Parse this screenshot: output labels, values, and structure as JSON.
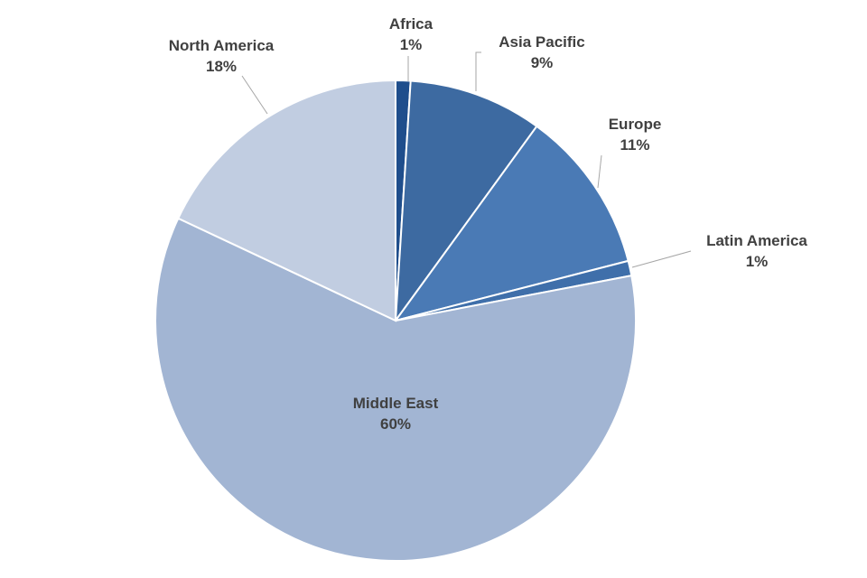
{
  "chart_data": {
    "type": "pie",
    "categories": [
      "Africa",
      "Asia Pacific",
      "Europe",
      "Latin America",
      "Middle East",
      "North America"
    ],
    "values": [
      1,
      9,
      11,
      1,
      60,
      18
    ],
    "value_labels": [
      "1%",
      "9%",
      "11%",
      "1%",
      "60%",
      "18%"
    ],
    "colors": [
      "#1f4e8c",
      "#3d6aa1",
      "#4a7ab5",
      "#3f6faa",
      "#a2b5d3",
      "#c1cde1"
    ],
    "start_angle_deg": 0,
    "direction": "clockwise",
    "legend": "none",
    "title": ""
  }
}
